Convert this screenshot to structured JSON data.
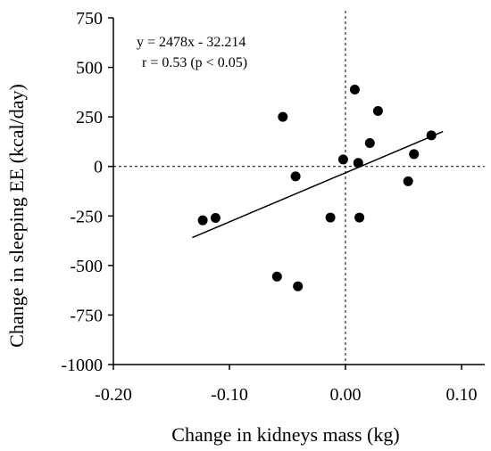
{
  "chart_data": {
    "type": "scatter",
    "xlabel": "Change in kidneys mass (kg)",
    "ylabel": "Change in sleeping EE (kcal/day)",
    "xlim": [
      -0.2,
      0.12
    ],
    "ylim": [
      -1000,
      750
    ],
    "x_ticks": [
      -0.2,
      -0.1,
      0.0,
      0.1
    ],
    "x_tick_labels": [
      "-0.20",
      "-0.10",
      "0.00",
      "0.10"
    ],
    "y_ticks": [
      -1000,
      -750,
      -500,
      -250,
      0,
      250,
      500,
      750
    ],
    "y_tick_labels": [
      "-1000",
      "-750",
      "-500",
      "-250",
      "0",
      "250",
      "500",
      "750"
    ],
    "grid": false,
    "reference_lines": {
      "x": 0,
      "y": 0,
      "style": "dashed"
    },
    "annotations": [
      "y = 2478x - 32.214",
      "r = 0.53 (p < 0.05)"
    ],
    "regression": {
      "slope": 2478,
      "intercept": -32.214,
      "x_range": [
        -0.132,
        0.084
      ]
    },
    "points": [
      {
        "x": -0.123,
        "y": -272
      },
      {
        "x": -0.112,
        "y": -260
      },
      {
        "x": -0.054,
        "y": 250
      },
      {
        "x": -0.043,
        "y": -50
      },
      {
        "x": -0.059,
        "y": -556
      },
      {
        "x": -0.041,
        "y": -605
      },
      {
        "x": -0.013,
        "y": -258
      },
      {
        "x": -0.002,
        "y": 35
      },
      {
        "x": 0.008,
        "y": 388
      },
      {
        "x": 0.011,
        "y": 18
      },
      {
        "x": 0.012,
        "y": -258
      },
      {
        "x": 0.021,
        "y": 118
      },
      {
        "x": 0.028,
        "y": 280
      },
      {
        "x": 0.054,
        "y": -75
      },
      {
        "x": 0.059,
        "y": 62
      },
      {
        "x": 0.074,
        "y": 157
      }
    ]
  }
}
